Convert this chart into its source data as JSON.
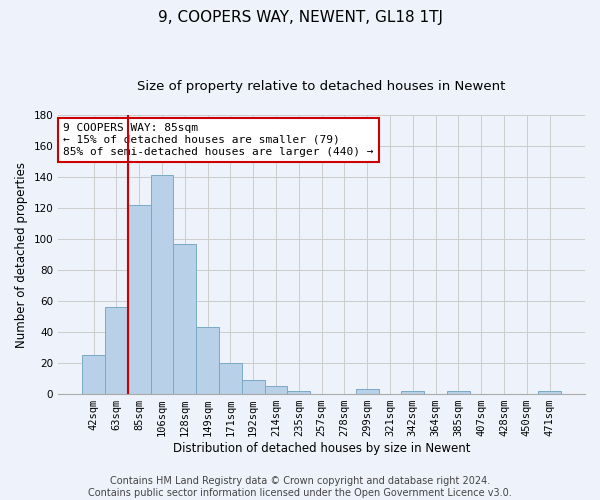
{
  "title": "9, COOPERS WAY, NEWENT, GL18 1TJ",
  "subtitle": "Size of property relative to detached houses in Newent",
  "xlabel": "Distribution of detached houses by size in Newent",
  "ylabel": "Number of detached properties",
  "categories": [
    "42sqm",
    "63sqm",
    "85sqm",
    "106sqm",
    "128sqm",
    "149sqm",
    "171sqm",
    "192sqm",
    "214sqm",
    "235sqm",
    "257sqm",
    "278sqm",
    "299sqm",
    "321sqm",
    "342sqm",
    "364sqm",
    "385sqm",
    "407sqm",
    "428sqm",
    "450sqm",
    "471sqm"
  ],
  "values": [
    25,
    56,
    122,
    141,
    97,
    43,
    20,
    9,
    5,
    2,
    0,
    0,
    3,
    0,
    2,
    0,
    2,
    0,
    0,
    0,
    2
  ],
  "bar_color": "#b8d0e8",
  "bar_edge_color": "#7aaac8",
  "highlight_index": 2,
  "highlight_color": "#cc0000",
  "ylim": [
    0,
    180
  ],
  "yticks": [
    0,
    20,
    40,
    60,
    80,
    100,
    120,
    140,
    160,
    180
  ],
  "annotation_title": "9 COOPERS WAY: 85sqm",
  "annotation_line1": "← 15% of detached houses are smaller (79)",
  "annotation_line2": "85% of semi-detached houses are larger (440) →",
  "annotation_box_color": "#ffffff",
  "annotation_box_edge": "#cc0000",
  "footer1": "Contains HM Land Registry data © Crown copyright and database right 2024.",
  "footer2": "Contains public sector information licensed under the Open Government Licence v3.0.",
  "grid_color": "#cccccc",
  "background_color": "#eef2fa",
  "title_fontsize": 11,
  "subtitle_fontsize": 9.5,
  "label_fontsize": 8.5,
  "tick_fontsize": 7.5,
  "annotation_fontsize": 8,
  "footer_fontsize": 7
}
